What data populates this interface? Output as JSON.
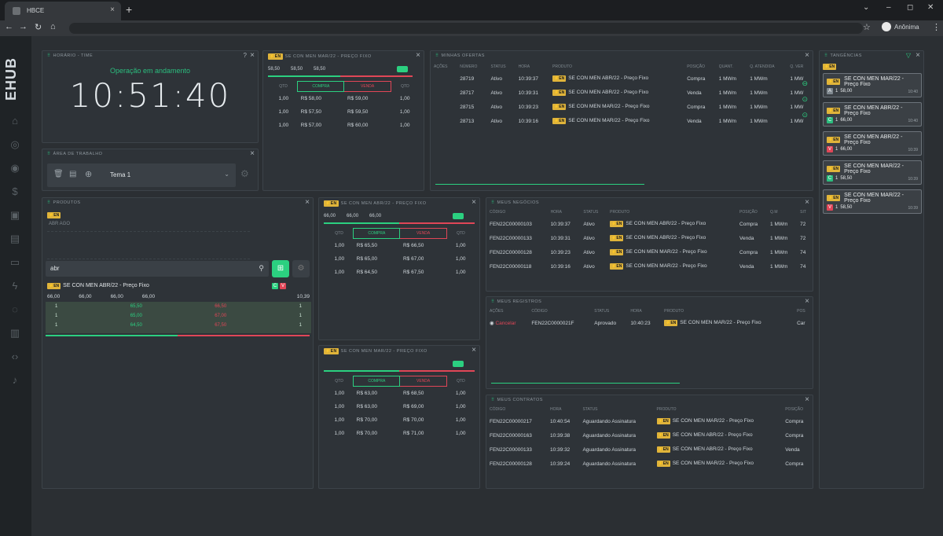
{
  "browser": {
    "tab_title": "HBCE",
    "profile_name": "Anônima"
  },
  "sidebar": {
    "logo": "EHUB"
  },
  "horario": {
    "title": "Horário - Time",
    "status": "Operação em andamento",
    "clock": "10:51:40"
  },
  "area_trabalho": {
    "title": "Área de Trabalho",
    "workspace": "Tema 1"
  },
  "book_top": {
    "title": "SE CON MEN MAR/22 - Preço Fixo",
    "price1": "58,50",
    "price2": "58,50",
    "price3": "58,50",
    "headers": [
      "QTD",
      "COMPRA",
      "VENDA",
      "QTD"
    ],
    "rows": [
      [
        "1,00",
        "R$ 58,00",
        "R$ 59,00",
        "1,00"
      ],
      [
        "1,00",
        "R$ 57,50",
        "R$ 59,50",
        "1,00"
      ],
      [
        "1,00",
        "R$ 57,00",
        "R$ 60,00",
        "1,00"
      ]
    ]
  },
  "minhas_ofertas": {
    "title": "Minhas Ofertas",
    "headers": [
      "Ações",
      "Número",
      "Status",
      "Hora",
      "Produto",
      "Posição",
      "Quant.",
      "Q. Atendida",
      "Q. Ver"
    ],
    "rows": [
      {
        "num": "28719",
        "status": "Ativo",
        "hora": "10:39:37",
        "produto": "SE CON MEN ABR/22 - Preço Fixo",
        "posicao": "Compra",
        "quant": "1 MWm",
        "q_at": "1 MWm",
        "q_ver": "1 MW"
      },
      {
        "num": "28717",
        "status": "Ativo",
        "hora": "10:39:31",
        "produto": "SE CON MEN ABR/22 - Preço Fixo",
        "posicao": "Venda",
        "quant": "1 MWm",
        "q_at": "1 MWm",
        "q_ver": "1 MW"
      },
      {
        "num": "28715",
        "status": "Ativo",
        "hora": "10:39:23",
        "produto": "SE CON MEN MAR/22 - Preço Fixo",
        "posicao": "Compra",
        "quant": "1 MWm",
        "q_at": "1 MWm",
        "q_ver": "1 MW"
      },
      {
        "num": "28713",
        "status": "Ativo",
        "hora": "10:39:16",
        "produto": "SE CON MEN MAR/22 - Preço Fixo",
        "posicao": "Venda",
        "quant": "1 MWm",
        "q_at": "1 MWm",
        "q_ver": "1 MW"
      }
    ]
  },
  "tangencias": {
    "title": "Tangências",
    "items": [
      {
        "product": "SE CON MEN MAR/22 - Preço Fixo",
        "qty": "1",
        "price": "58,00",
        "time": "10:40",
        "tag": "A",
        "tag_color": "#7f888f"
      },
      {
        "product": "SE CON MEN ABR/22 - Preço Fixo",
        "qty": "1",
        "price": "66,00",
        "time": "10:40",
        "tag": "C",
        "tag_color": "#2bbd7e"
      },
      {
        "product": "SE CON MEN ABR/22 - Preço Fixo",
        "qty": "1",
        "price": "66,00",
        "time": "10:39",
        "tag": "V",
        "tag_color": "#e04657"
      },
      {
        "product": "SE CON MEN MAR/22 - Preço Fixo",
        "qty": "1",
        "price": "58,50",
        "time": "10:39",
        "tag": "C",
        "tag_color": "#2bbd7e"
      },
      {
        "product": "SE CON MEN MAR/22 - Preço Fixo",
        "qty": "1",
        "price": "58,50",
        "time": "10:39",
        "tag": "V",
        "tag_color": "#e04657"
      }
    ]
  },
  "produtos": {
    "title": "Produtos",
    "filter_en": "EN",
    "months_label": "ABR AGO",
    "search_value": "abr",
    "product_name": "SE CON MEN ABR/22 - Preço Fixo",
    "prices": [
      "66,00",
      "66,00",
      "66,00",
      "66,00"
    ],
    "last": "10,39",
    "rows": [
      [
        "1",
        "65,50",
        "66,50",
        "1"
      ],
      [
        "1",
        "65,00",
        "67,00",
        "1"
      ],
      [
        "1",
        "64,50",
        "67,50",
        "1"
      ]
    ]
  },
  "book_mid": {
    "title": "SE CON MEN ABR/22 - Preço Fixo",
    "price1": "66,00",
    "price2": "66,00",
    "price3": "66,00",
    "headers": [
      "QTD",
      "COMPRA",
      "VENDA",
      "QTD"
    ],
    "rows": [
      [
        "1,00",
        "R$ 65,50",
        "R$ 66,50",
        "1,00"
      ],
      [
        "1,00",
        "R$ 65,00",
        "R$ 67,00",
        "1,00"
      ],
      [
        "1,00",
        "R$ 64,50",
        "R$ 67,50",
        "1,00"
      ]
    ]
  },
  "book_bot": {
    "title": "SE CON MEN MAR/22 - Preço Fixo",
    "headers": [
      "QTD",
      "COMPRA",
      "VENDA",
      "QTD"
    ],
    "rows": [
      [
        "1,00",
        "R$ 63,00",
        "R$ 68,50",
        "1,00"
      ],
      [
        "1,00",
        "R$ 63,00",
        "R$ 69,00",
        "1,00"
      ],
      [
        "1,00",
        "R$ 70,00",
        "R$ 70,00",
        "1,00"
      ],
      [
        "1,00",
        "R$ 70,00",
        "R$ 71,00",
        "1,00"
      ]
    ]
  },
  "meus_negocios": {
    "title": "Meus Negócios",
    "headers": [
      "Código",
      "Hora",
      "Status",
      "Produto",
      "Posição",
      "Q.M",
      "Sit"
    ],
    "rows": [
      {
        "code": "FEN22C00000103",
        "hora": "10:39:37",
        "status": "Ativo",
        "produto": "SE CON MEN ABR/22 - Preço Fixo",
        "pos": "Compra",
        "qm": "1 MWm",
        "sit": "72"
      },
      {
        "code": "FEN22C00000133",
        "hora": "10:39:31",
        "status": "Ativo",
        "produto": "SE CON MEN ABR/22 - Preço Fixo",
        "pos": "Venda",
        "qm": "1 MWm",
        "sit": "72"
      },
      {
        "code": "FEN22C00000128",
        "hora": "10:39:23",
        "status": "Ativo",
        "produto": "SE CON MEN MAR/22 - Preço Fixo",
        "pos": "Compra",
        "qm": "1 MWm",
        "sit": "74"
      },
      {
        "code": "FEN22C00000118",
        "hora": "10:39:16",
        "status": "Ativo",
        "produto": "SE CON MEN MAR/22 - Preço Fixo",
        "pos": "Venda",
        "qm": "1 MWm",
        "sit": "74"
      }
    ]
  },
  "meus_registros": {
    "title": "Meus Registros",
    "headers": [
      "Ações",
      "Código",
      "Status",
      "Hora",
      "Produto",
      "Pos"
    ],
    "row": {
      "acao": "Cancelar",
      "code": "FEN22C0000021F",
      "status": "Aprovado",
      "hora": "10:40:23",
      "produto": "SE CON MEN MAR/22 - Preço Fixo",
      "pos": "Car"
    }
  },
  "meus_contratos": {
    "title": "Meus Contratos",
    "headers": [
      "Código",
      "Hora",
      "Status",
      "Produto",
      "Posição"
    ],
    "rows": [
      {
        "code": "FEN22C00000217",
        "hora": "10:40:54",
        "status": "Aguardando Assinatura",
        "produto": "SE CON MEN MAR/22 - Preço Fixo",
        "pos": "Compra"
      },
      {
        "code": "FEN22C00000163",
        "hora": "10:39:38",
        "status": "Aguardando Assinatura",
        "produto": "SE CON MEN ABR/22 - Preço Fixo",
        "pos": "Compra"
      },
      {
        "code": "FEN22C00000133",
        "hora": "10:39:32",
        "status": "Aguardando Assinatura",
        "produto": "SE CON MEN ABR/22 - Preço Fixo",
        "pos": "Venda"
      },
      {
        "code": "FEN22C00000128",
        "hora": "10:39:24",
        "status": "Aguardando Assinatura",
        "produto": "SE CON MEN MAR/22 - Preço Fixo",
        "pos": "Compra"
      }
    ]
  },
  "colors": {
    "accent_green": "#2bd080",
    "accent_red": "#e04657",
    "badge_yellow": "#e0b43a"
  }
}
